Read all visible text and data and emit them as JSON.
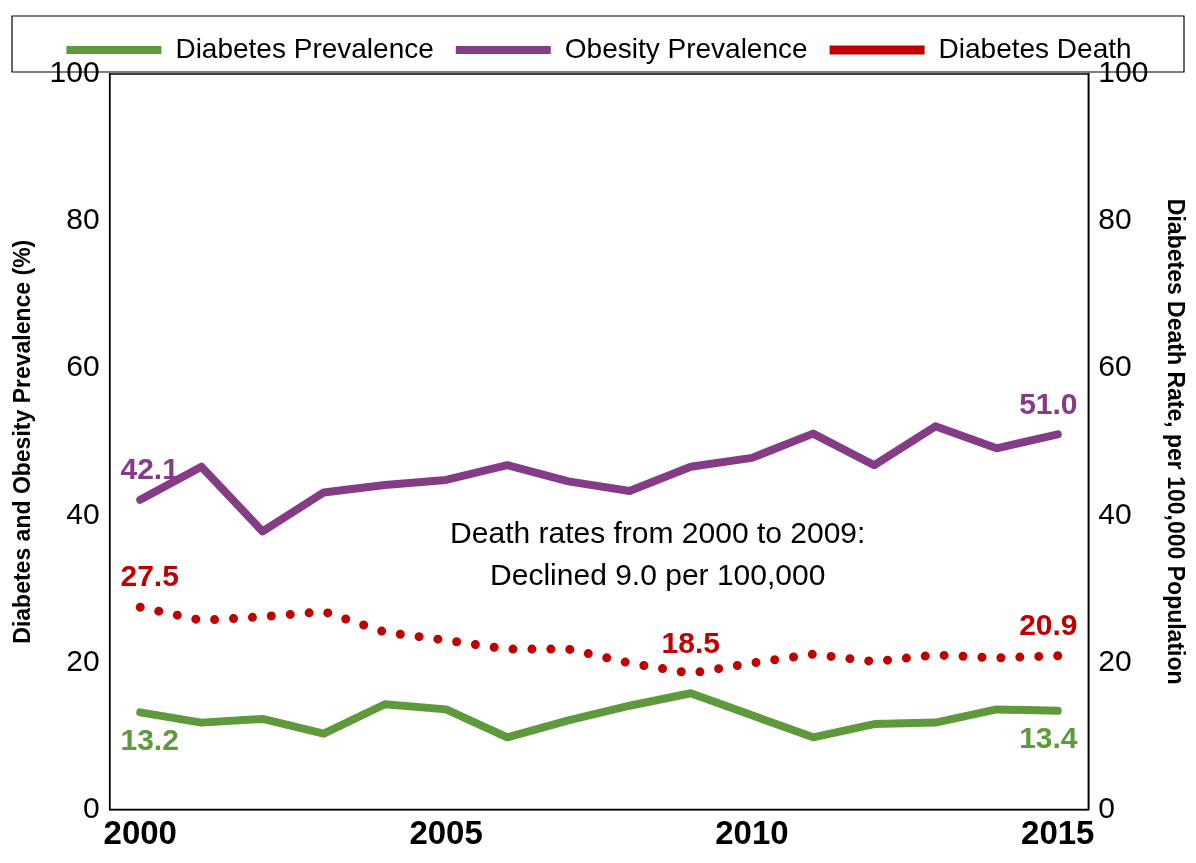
{
  "chart_data": {
    "type": "line",
    "annotations": [
      "Death rates from 2000 to 2009:\nDeclined 9.0 per 100,000"
    ],
    "ylabel": "Diabetes and Obesity Prevalence (%)",
    "y2label": "Diabetes Death Rate, per 100,000 Population",
    "x": [
      2000,
      2001,
      2002,
      2003,
      2004,
      2005,
      2006,
      2007,
      2008,
      2009,
      2010,
      2011,
      2012,
      2013,
      2014,
      2015
    ],
    "xlim": [
      1999.5,
      2015.5
    ],
    "xticks": [
      2000,
      2005,
      2010,
      2015
    ],
    "ylim": [
      0,
      100
    ],
    "yticks": [
      0,
      20,
      40,
      60,
      80,
      100
    ],
    "y2lim": [
      0,
      100
    ],
    "y2ticks": [
      0,
      20,
      40,
      60,
      80,
      100
    ],
    "series": [
      {
        "name": "Diabetes Prevalence",
        "color": "#5e9a3c",
        "line_style": "solid",
        "values": [
          13.2,
          11.8,
          12.3,
          10.3,
          14.3,
          13.6,
          9.8,
          12.1,
          14.1,
          15.8,
          12.8,
          9.8,
          11.6,
          11.8,
          13.6,
          13.4
        ],
        "value_labels": [
          "13.2",
          null,
          null,
          null,
          null,
          null,
          null,
          null,
          null,
          null,
          null,
          null,
          null,
          null,
          null,
          "13.4"
        ]
      },
      {
        "name": "Obesity Prevalence",
        "color": "#843c87",
        "line_style": "solid",
        "values": [
          42.1,
          46.6,
          37.8,
          43.1,
          44.1,
          44.8,
          46.8,
          44.6,
          43.3,
          46.6,
          47.8,
          51.1,
          46.8,
          52.1,
          49.1,
          51.0
        ],
        "value_labels": [
          "42.1",
          null,
          null,
          null,
          null,
          null,
          null,
          null,
          null,
          null,
          null,
          null,
          null,
          null,
          null,
          "51.0"
        ]
      },
      {
        "name": "Diabetes Death",
        "color": "#c00000",
        "line_style": "dotted",
        "axis": "y2",
        "values": [
          27.5,
          25.7,
          26.2,
          26.9,
          24.1,
          23.0,
          21.8,
          21.8,
          19.9,
          18.5,
          19.9,
          21.1,
          20.1,
          21.0,
          20.6,
          20.9
        ],
        "value_labels": [
          "27.5",
          null,
          null,
          null,
          null,
          null,
          null,
          null,
          null,
          "18.5",
          null,
          null,
          null,
          null,
          null,
          "20.9"
        ]
      }
    ],
    "legend": "top",
    "marker": "none",
    "grid": false
  }
}
